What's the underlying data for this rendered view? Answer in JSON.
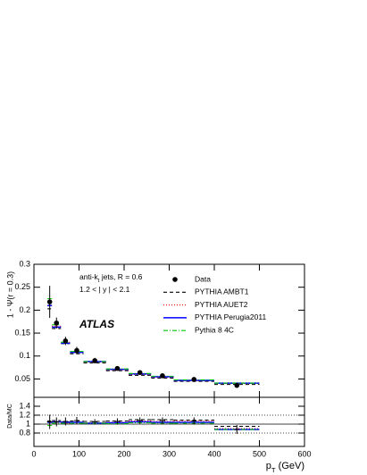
{
  "chart_data": [
    {
      "type": "step",
      "ylabel": "1 - Ψ(r = 0.3)",
      "xlim": [
        0,
        600
      ],
      "ylim": [
        0.01,
        0.3
      ],
      "yticks": [
        0.05,
        0.1,
        0.15,
        0.2,
        0.25,
        0.3
      ],
      "bins": [
        30,
        40,
        60,
        80,
        110,
        160,
        210,
        260,
        310,
        400,
        500
      ],
      "x": [
        35,
        50,
        70,
        95,
        135,
        185,
        235,
        285,
        355,
        450
      ],
      "data": {
        "name": "Data",
        "color": "#000000",
        "values": [
          0.218,
          0.172,
          0.133,
          0.112,
          0.09,
          0.073,
          0.064,
          0.057,
          0.049,
          0.036
        ],
        "errors": [
          0.035,
          0.012,
          0.009,
          0.008,
          0.006,
          0.005,
          0.004,
          0.004,
          0.004,
          0.004
        ]
      },
      "series": [
        {
          "name": "PYTHIA AMBT1",
          "color": "#000000",
          "dash": "4,3",
          "values": [
            0.203,
            0.16,
            0.127,
            0.105,
            0.085,
            0.068,
            0.058,
            0.052,
            0.045,
            0.038
          ]
        },
        {
          "name": "PYTHIA AUET2",
          "color": "#ff0000",
          "dash": "1,2",
          "values": [
            0.21,
            0.165,
            0.13,
            0.108,
            0.087,
            0.07,
            0.06,
            0.054,
            0.046,
            0.04
          ]
        },
        {
          "name": "PYTHIA Perugia2011",
          "color": "#0000ff",
          "dash": "none",
          "values": [
            0.21,
            0.163,
            0.128,
            0.108,
            0.088,
            0.071,
            0.061,
            0.055,
            0.047,
            0.041
          ]
        },
        {
          "name": "Pythia 8 4C",
          "color": "#00cc00",
          "dash": "5,2,1,2",
          "values": [
            0.225,
            0.168,
            0.13,
            0.11,
            0.088,
            0.072,
            0.062,
            0.056,
            0.048,
            0.041
          ]
        }
      ],
      "annotations": [
        [
          "anti-k",
          "t",
          " jets, R = 0.6"
        ],
        [
          "1.2 < | y | < 2.1"
        ]
      ],
      "logo": "ATLAS",
      "legend": "upper right"
    },
    {
      "type": "step",
      "ylabel": "Data/MC",
      "xlabel": [
        "p",
        "T",
        " (GeV)"
      ],
      "xlim": [
        0,
        600
      ],
      "ylim": [
        0.5,
        1.6
      ],
      "yticks": [
        0.8,
        1,
        1.2,
        1.4
      ],
      "xticks": [
        0,
        100,
        200,
        300,
        400,
        500,
        600
      ],
      "reflines": [
        0.8,
        1,
        1.2
      ],
      "bins": [
        30,
        40,
        60,
        80,
        110,
        160,
        210,
        260,
        310,
        400,
        500
      ],
      "x": [
        35,
        50,
        70,
        95,
        135,
        185,
        235,
        285,
        355,
        450
      ],
      "data": {
        "values": [
          1.05,
          1.05,
          1.06,
          1.08,
          1.05,
          1.06,
          1.08,
          1.08,
          1.07,
          0.88
        ],
        "errors": [
          0.16,
          0.1,
          0.09,
          0.08,
          0.06,
          0.07,
          0.07,
          0.07,
          0.08,
          0.1
        ]
      },
      "series": [
        {
          "values": [
            1.07,
            1.08,
            1.05,
            1.07,
            1.06,
            1.07,
            1.1,
            1.1,
            1.09,
            0.95
          ]
        },
        {
          "values": [
            1.04,
            1.04,
            1.02,
            1.04,
            1.03,
            1.04,
            1.07,
            1.06,
            1.07,
            0.9
          ]
        },
        {
          "values": [
            1.04,
            1.05,
            1.04,
            1.04,
            1.02,
            1.03,
            1.05,
            1.04,
            1.04,
            0.88
          ]
        },
        {
          "values": [
            0.97,
            1.02,
            1.02,
            1.02,
            1.02,
            1.01,
            1.03,
            1.02,
            1.02,
            0.88
          ]
        }
      ]
    }
  ]
}
